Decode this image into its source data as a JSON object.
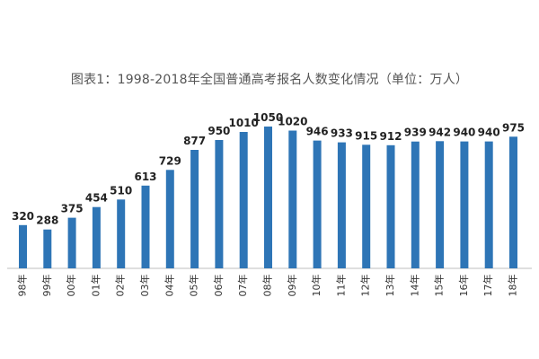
{
  "chart_data": {
    "type": "bar",
    "title": "图表1：1998-2018年全国普通高考报名人数变化情况（单位：万人）",
    "xlabel": "",
    "ylabel": "",
    "categories": [
      "98年",
      "99年",
      "00年",
      "01年",
      "02年",
      "03年",
      "04年",
      "05年",
      "06年",
      "07年",
      "08年",
      "09年",
      "10年",
      "11年",
      "12年",
      "13年",
      "14年",
      "15年",
      "16年",
      "17年",
      "18年"
    ],
    "values": [
      320,
      288,
      375,
      454,
      510,
      613,
      729,
      877,
      950,
      1010,
      1050,
      1020,
      946,
      933,
      915,
      912,
      939,
      942,
      940,
      940,
      975
    ],
    "ylim": [
      0,
      1050
    ],
    "grid": false,
    "legend": "none",
    "bar_color": "#2e75b6"
  }
}
